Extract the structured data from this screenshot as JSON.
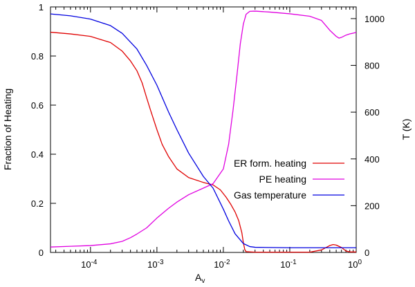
{
  "chart_data": {
    "type": "line",
    "xscale": "log",
    "xlim": [
      2.5e-05,
      1
    ],
    "ylim": [
      0,
      1
    ],
    "y2lim": [
      0,
      1050
    ],
    "xlabel": "A",
    "xlabel_sub": "v",
    "ylabel": "Fraction of Heating",
    "y2label": "T (K)",
    "xticks": [
      {
        "value": 0.0001,
        "base": "10",
        "exp": "-4"
      },
      {
        "value": 0.001,
        "base": "10",
        "exp": "-3"
      },
      {
        "value": 0.01,
        "base": "10",
        "exp": "-2"
      },
      {
        "value": 0.1,
        "base": "10",
        "exp": "-1"
      },
      {
        "value": 1,
        "base": "10",
        "exp": "0"
      }
    ],
    "yticks": [
      {
        "value": 0,
        "label": "0"
      },
      {
        "value": 0.2,
        "label": "0.2"
      },
      {
        "value": 0.4,
        "label": "0.4"
      },
      {
        "value": 0.6,
        "label": "0.6"
      },
      {
        "value": 0.8,
        "label": "0.8"
      },
      {
        "value": 1,
        "label": "1"
      }
    ],
    "y2ticks": [
      {
        "value": 0,
        "label": "0"
      },
      {
        "value": 200,
        "label": "200"
      },
      {
        "value": 400,
        "label": "400"
      },
      {
        "value": 600,
        "label": "600"
      },
      {
        "value": 800,
        "label": "800"
      },
      {
        "value": 1000,
        "label": "1000"
      }
    ],
    "legend_position": "center-right",
    "series": [
      {
        "name": "ER form. heating",
        "color": "#e00000",
        "axis": "left",
        "points": [
          [
            2.5e-05,
            0.897
          ],
          [
            5e-05,
            0.89
          ],
          [
            0.0001,
            0.88
          ],
          [
            0.0002,
            0.855
          ],
          [
            0.0003,
            0.82
          ],
          [
            0.0004,
            0.78
          ],
          [
            0.0005,
            0.74
          ],
          [
            0.0006,
            0.69
          ],
          [
            0.0007,
            0.63
          ],
          [
            0.0008,
            0.58
          ],
          [
            0.001,
            0.5
          ],
          [
            0.0012,
            0.44
          ],
          [
            0.0015,
            0.39
          ],
          [
            0.002,
            0.34
          ],
          [
            0.003,
            0.305
          ],
          [
            0.005,
            0.285
          ],
          [
            0.007,
            0.275
          ],
          [
            0.009,
            0.255
          ],
          [
            0.011,
            0.225
          ],
          [
            0.013,
            0.195
          ],
          [
            0.015,
            0.165
          ],
          [
            0.017,
            0.13
          ],
          [
            0.019,
            0.08
          ],
          [
            0.02,
            0.04
          ],
          [
            0.021,
            0.012
          ],
          [
            0.022,
            0.003
          ],
          [
            0.03,
            0.001
          ],
          [
            0.1,
            0.001
          ],
          [
            0.2,
            0.001
          ],
          [
            0.3,
            0.01
          ],
          [
            0.4,
            0.028
          ],
          [
            0.45,
            0.032
          ],
          [
            0.5,
            0.03
          ],
          [
            0.6,
            0.02
          ],
          [
            0.7,
            0.006
          ],
          [
            0.8,
            0.002
          ],
          [
            1,
            0.002
          ]
        ]
      },
      {
        "name": "PE heating",
        "color": "#e000e0",
        "axis": "left",
        "points": [
          [
            2.5e-05,
            0.022
          ],
          [
            5e-05,
            0.025
          ],
          [
            0.0001,
            0.028
          ],
          [
            0.0002,
            0.035
          ],
          [
            0.0003,
            0.045
          ],
          [
            0.0004,
            0.06
          ],
          [
            0.0005,
            0.075
          ],
          [
            0.0007,
            0.1
          ],
          [
            0.001,
            0.14
          ],
          [
            0.0015,
            0.18
          ],
          [
            0.002,
            0.205
          ],
          [
            0.003,
            0.235
          ],
          [
            0.005,
            0.262
          ],
          [
            0.007,
            0.28
          ],
          [
            0.01,
            0.34
          ],
          [
            0.012,
            0.44
          ],
          [
            0.014,
            0.58
          ],
          [
            0.016,
            0.72
          ],
          [
            0.018,
            0.85
          ],
          [
            0.02,
            0.93
          ],
          [
            0.022,
            0.97
          ],
          [
            0.025,
            0.982
          ],
          [
            0.03,
            0.983
          ],
          [
            0.05,
            0.979
          ],
          [
            0.1,
            0.972
          ],
          [
            0.2,
            0.962
          ],
          [
            0.3,
            0.945
          ],
          [
            0.4,
            0.905
          ],
          [
            0.5,
            0.88
          ],
          [
            0.55,
            0.873
          ],
          [
            0.6,
            0.876
          ],
          [
            0.7,
            0.885
          ],
          [
            0.8,
            0.89
          ],
          [
            1,
            0.896
          ]
        ]
      },
      {
        "name": "Gas temperature",
        "color": "#0000e0",
        "axis": "right",
        "points": [
          [
            2.5e-05,
            1020
          ],
          [
            5e-05,
            1012
          ],
          [
            0.0001,
            998
          ],
          [
            0.0002,
            970
          ],
          [
            0.0003,
            937
          ],
          [
            0.0005,
            870
          ],
          [
            0.0007,
            800
          ],
          [
            0.001,
            715
          ],
          [
            0.0015,
            600
          ],
          [
            0.002,
            525
          ],
          [
            0.003,
            425
          ],
          [
            0.005,
            325
          ],
          [
            0.007,
            275
          ],
          [
            0.01,
            185
          ],
          [
            0.012,
            135
          ],
          [
            0.015,
            80
          ],
          [
            0.02,
            38
          ],
          [
            0.025,
            25
          ],
          [
            0.03,
            22
          ],
          [
            0.05,
            21
          ],
          [
            0.1,
            20
          ],
          [
            0.3,
            20
          ],
          [
            1,
            20
          ]
        ]
      }
    ]
  }
}
